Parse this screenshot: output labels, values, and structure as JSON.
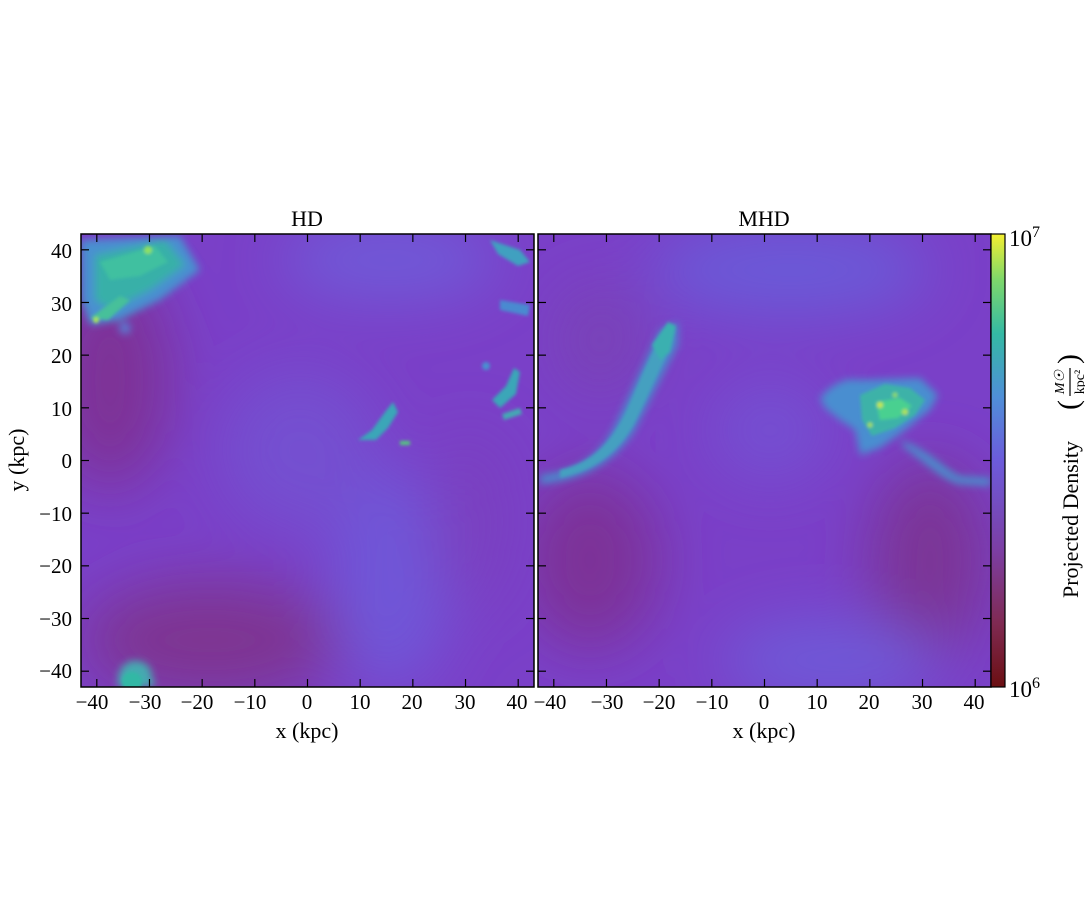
{
  "chart_data": {
    "type": "heatmap",
    "panels": [
      {
        "title": "HD",
        "xlabel": "x (kpc)",
        "ylabel": "y (kpc)",
        "xlim": [
          -43,
          43
        ],
        "ylim": [
          -43,
          43
        ],
        "xticks": [
          "−40",
          "−30",
          "−20",
          "−10",
          "0",
          "10",
          "20",
          "30",
          "40"
        ],
        "yticks": [
          "40",
          "30",
          "20",
          "10",
          "0",
          "−10",
          "−20",
          "−30",
          "−40"
        ],
        "features": [
          "dense clump upper-left (x≈-32, y≈35)",
          "small filaments near x≈12, y≈7",
          "clumps at right edge (x≈35..42, y≈5..40)",
          "clump at bottom (x≈-33, y≈-42)"
        ]
      },
      {
        "title": "MHD",
        "xlabel": "x (kpc)",
        "ylabel": "",
        "xlim": [
          -43,
          43
        ],
        "ylim": [
          -43,
          43
        ],
        "xticks": [
          "−40",
          "−30",
          "−20",
          "−10",
          "0",
          "10",
          "20",
          "30",
          "40"
        ],
        "features": [
          "filament from (x≈-43, y≈-3) to (x≈-18, y≈25)",
          "knotted structure near (x≈25, y≈10)",
          "tail from (x≈27, y≈4) to (x≈43, y≈-3)"
        ]
      }
    ],
    "colorbar": {
      "label": "Projected Density",
      "units": "M☉ / kpc²",
      "scale": "log",
      "range": [
        1000000,
        10000000
      ],
      "tick_labels": {
        "max": "10",
        "max_exp": "7",
        "min": "10",
        "min_exp": "6"
      },
      "colormap": [
        "#6b0f12",
        "#7f2a52",
        "#7c3ea3",
        "#6c5bdb",
        "#4f8fd8",
        "#34b9a4",
        "#7fd86a",
        "#f4ef30"
      ]
    }
  }
}
